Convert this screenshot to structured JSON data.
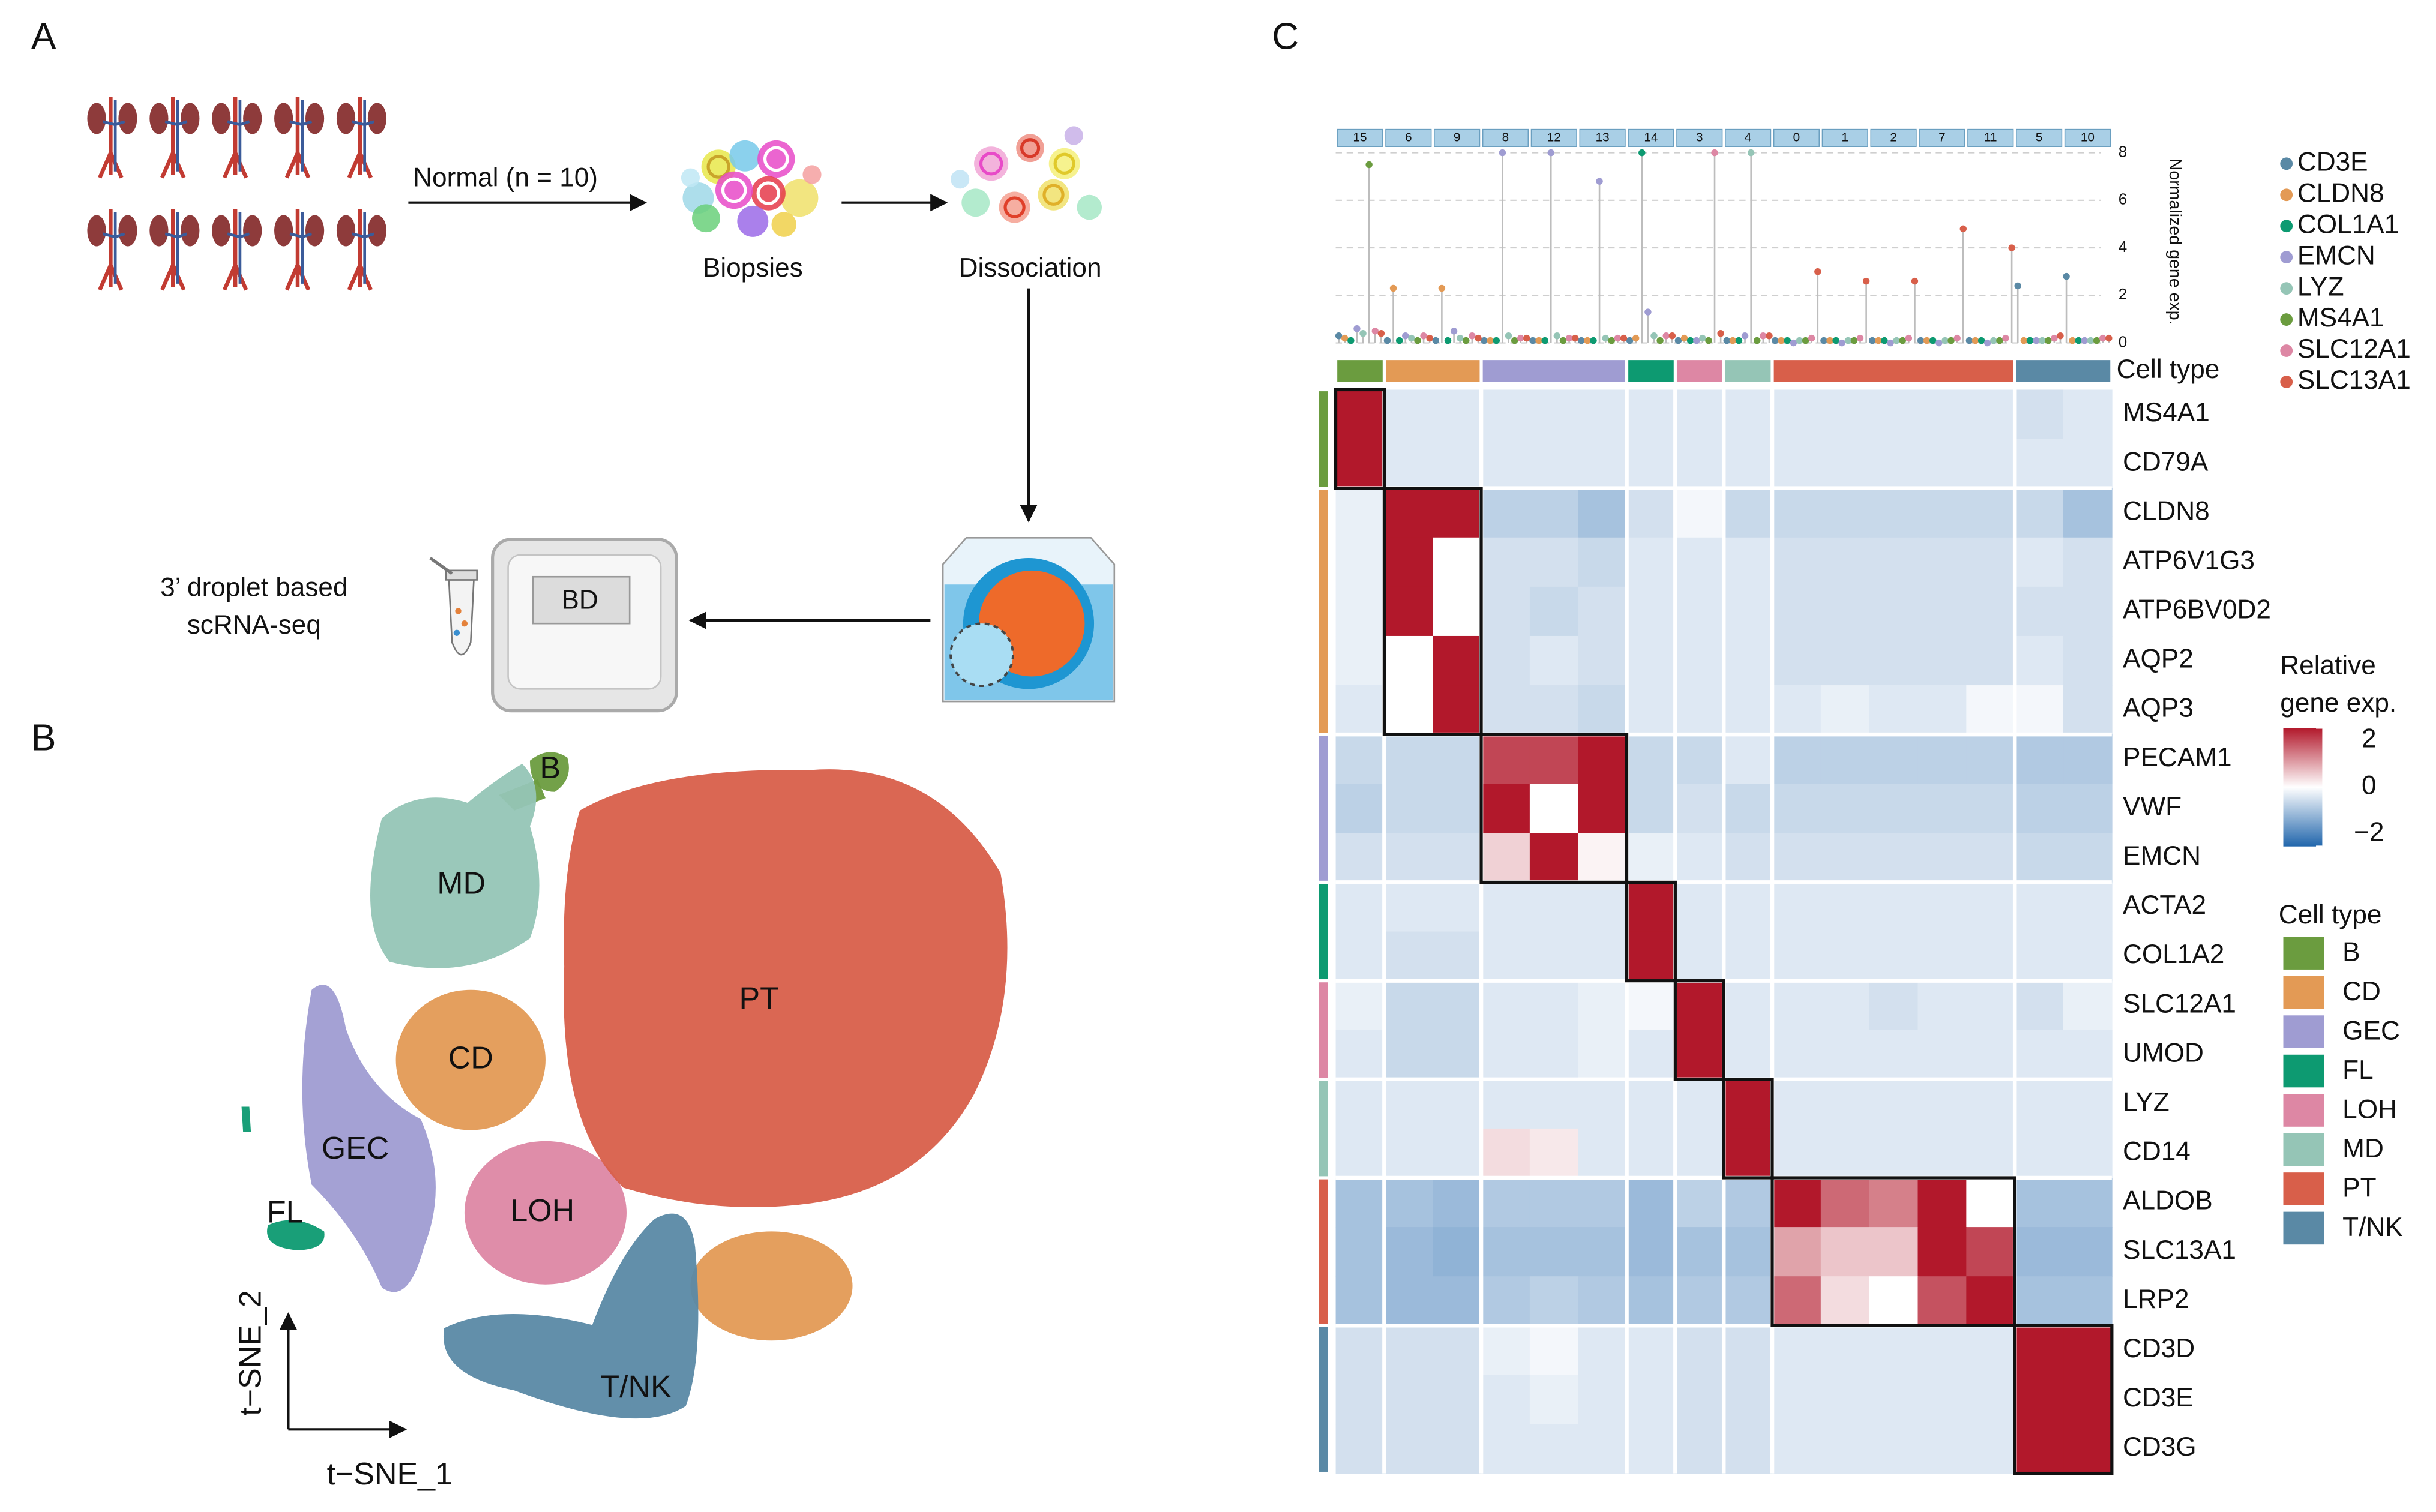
{
  "panel_a": {
    "label": "A",
    "condition": "Normal (n = 10)",
    "biopsies": "Biopsies",
    "dissociation": "Dissociation",
    "platform": "BD",
    "method": [
      "3’ droplet based",
      "scRNA-seq"
    ]
  },
  "panel_b": {
    "label": "B",
    "xlabel": "t−SNE_1",
    "ylabel": "t−SNE_2"
  },
  "panel_c": {
    "label": "C",
    "cell_type_label": "Cell type",
    "legend_title": "Cell type",
    "lollipop": {
      "type": "lollipop",
      "ylabel": "Normalized gene exp.",
      "ylim": [
        0,
        8
      ],
      "yticks": [
        0,
        2,
        4,
        6,
        8
      ],
      "grid": true,
      "series": [
        {
          "name": "CD3E",
          "color": "#5a89a5",
          "values": [
            0.3,
            0.1,
            0.1,
            0.1,
            0.1,
            0.1,
            0.1,
            0.1,
            0.1,
            0.1,
            0.1,
            0.1,
            0.1,
            0.1,
            2.4,
            2.8
          ]
        },
        {
          "name": "CLDN8",
          "color": "#e39a55",
          "values": [
            0.2,
            2.3,
            2.3,
            0.1,
            0.1,
            0.1,
            0.2,
            0.2,
            0.1,
            0.1,
            0.1,
            0.1,
            0.1,
            0.1,
            0.1,
            0.1
          ]
        },
        {
          "name": "COL1A1",
          "color": "#0d9a71",
          "values": [
            0.1,
            0.1,
            0.1,
            0.1,
            0.1,
            0.1,
            8,
            0.1,
            0.1,
            0.1,
            0.1,
            0.1,
            0.1,
            0.1,
            0.1,
            0.1
          ]
        },
        {
          "name": "EMCN",
          "color": "#9f9cd2",
          "values": [
            0.6,
            0.3,
            0.5,
            8,
            8,
            6.8,
            1.3,
            0.1,
            0.3,
            0,
            0,
            0,
            0,
            0,
            0.1,
            0.1
          ]
        },
        {
          "name": "LYZ",
          "color": "#95c5b6",
          "values": [
            0.4,
            0.2,
            0.2,
            0.3,
            0.3,
            0.2,
            0.3,
            0.2,
            8,
            0.1,
            0.1,
            0.1,
            0.1,
            0.1,
            0.1,
            0.1
          ]
        },
        {
          "name": "MS4A1",
          "color": "#6b9c3f",
          "values": [
            7.5,
            0.1,
            0.1,
            0.1,
            0.1,
            0.1,
            0.1,
            0.1,
            0.1,
            0.1,
            0.1,
            0.1,
            0.1,
            0.1,
            0.1,
            0.1
          ]
        },
        {
          "name": "SLC12A1",
          "color": "#dd87a4",
          "values": [
            0.5,
            0.3,
            0.3,
            0.2,
            0.2,
            0.2,
            0.3,
            8,
            0.3,
            0.2,
            0.2,
            0.2,
            0.2,
            0.2,
            0.2,
            0.2
          ]
        },
        {
          "name": "SLC13A1",
          "color": "#d85f4a",
          "values": [
            0.4,
            0.2,
            0.2,
            0.2,
            0.2,
            0.2,
            0.3,
            0.4,
            0.3,
            3,
            2.6,
            2.6,
            4.8,
            4,
            0.3,
            0.2
          ]
        }
      ]
    },
    "colorbar": {
      "title": [
        "Relative",
        "gene exp."
      ],
      "lim": [
        -2,
        2
      ],
      "colors": [
        "#2166ac",
        "#ffffff",
        "#b2182b"
      ],
      "ticks": [
        2,
        0,
        {
          "value": -2,
          "label": "−2"
        }
      ]
    }
  },
  "cell_types": [
    {
      "name": "B",
      "color": "#6b9c3f",
      "clusters": [
        "15"
      ],
      "genes": [
        {
          "name": "MS4A1",
          "values": [
            2,
            -0.3,
            -0.3,
            -0.3,
            -0.3,
            -0.3,
            -0.3,
            -0.3,
            -0.3,
            -0.3,
            -0.3,
            -0.3,
            -0.3,
            -0.3,
            -0.4,
            -0.3
          ]
        },
        {
          "name": "CD79A",
          "values": [
            2,
            -0.3,
            -0.3,
            -0.3,
            -0.3,
            -0.3,
            -0.3,
            -0.3,
            -0.3,
            -0.3,
            -0.3,
            -0.3,
            -0.3,
            -0.3,
            -0.3,
            -0.3
          ]
        }
      ]
    },
    {
      "name": "CD",
      "color": "#e39a55",
      "clusters": [
        "6",
        "9"
      ],
      "genes": [
        {
          "name": "CLDN8",
          "values": [
            -0.2,
            2,
            2,
            -0.6,
            -0.6,
            -0.8,
            -0.4,
            -0.1,
            -0.5,
            -0.5,
            -0.5,
            -0.5,
            -0.5,
            -0.5,
            -0.5,
            -0.8
          ]
        },
        {
          "name": "ATP6V1G3",
          "values": [
            -0.2,
            2,
            0,
            -0.4,
            -0.4,
            -0.5,
            -0.3,
            -0.3,
            -0.3,
            -0.4,
            -0.4,
            -0.4,
            -0.4,
            -0.4,
            -0.3,
            -0.4
          ]
        },
        {
          "name": "ATP6BV0D2",
          "values": [
            -0.2,
            2,
            0,
            -0.4,
            -0.5,
            -0.4,
            -0.3,
            -0.3,
            -0.3,
            -0.4,
            -0.4,
            -0.4,
            -0.4,
            -0.4,
            -0.4,
            -0.4
          ]
        },
        {
          "name": "AQP2",
          "values": [
            -0.2,
            0,
            2,
            -0.4,
            -0.3,
            -0.4,
            -0.3,
            -0.3,
            -0.3,
            -0.4,
            -0.4,
            -0.4,
            -0.4,
            -0.4,
            -0.3,
            -0.4
          ]
        },
        {
          "name": "AQP3",
          "values": [
            -0.3,
            0,
            2,
            -0.4,
            -0.4,
            -0.5,
            -0.3,
            -0.3,
            -0.3,
            -0.3,
            -0.2,
            -0.3,
            -0.3,
            -0.1,
            -0.1,
            -0.4
          ]
        }
      ]
    },
    {
      "name": "GEC",
      "color": "#9f9cd2",
      "clusters": [
        "8",
        "12",
        "13"
      ],
      "genes": [
        {
          "name": "PECAM1",
          "values": [
            -0.5,
            -0.5,
            -0.5,
            1.6,
            1.6,
            2,
            -0.5,
            -0.5,
            -0.3,
            -0.6,
            -0.6,
            -0.6,
            -0.6,
            -0.6,
            -0.7,
            -0.7
          ]
        },
        {
          "name": "VWF",
          "values": [
            -0.6,
            -0.5,
            -0.5,
            2,
            0,
            2,
            -0.5,
            -0.4,
            -0.5,
            -0.5,
            -0.5,
            -0.5,
            -0.5,
            -0.5,
            -0.6,
            -0.6
          ]
        },
        {
          "name": "EMCN",
          "values": [
            -0.4,
            -0.4,
            -0.4,
            0.4,
            2,
            0.1,
            -0.2,
            -0.3,
            -0.4,
            -0.4,
            -0.4,
            -0.4,
            -0.4,
            -0.4,
            -0.5,
            -0.5
          ]
        }
      ]
    },
    {
      "name": "FL",
      "color": "#0d9a71",
      "clusters": [
        "14"
      ],
      "genes": [
        {
          "name": "ACTA2",
          "values": [
            -0.3,
            -0.3,
            -0.3,
            -0.3,
            -0.3,
            -0.3,
            2,
            -0.3,
            -0.3,
            -0.3,
            -0.3,
            -0.3,
            -0.3,
            -0.3,
            -0.3,
            -0.3
          ]
        },
        {
          "name": "COL1A2",
          "values": [
            -0.3,
            -0.4,
            -0.4,
            -0.3,
            -0.3,
            -0.3,
            2,
            -0.3,
            -0.3,
            -0.3,
            -0.3,
            -0.3,
            -0.3,
            -0.3,
            -0.3,
            -0.3
          ]
        }
      ]
    },
    {
      "name": "LOH",
      "color": "#dd87a4",
      "clusters": [
        "3"
      ],
      "genes": [
        {
          "name": "SLC12A1",
          "values": [
            -0.2,
            -0.5,
            -0.5,
            -0.3,
            -0.3,
            -0.2,
            -0.1,
            2,
            -0.3,
            -0.3,
            -0.3,
            -0.4,
            -0.3,
            -0.3,
            -0.4,
            -0.2
          ]
        },
        {
          "name": "UMOD",
          "values": [
            -0.3,
            -0.5,
            -0.5,
            -0.3,
            -0.3,
            -0.2,
            -0.3,
            2,
            -0.3,
            -0.3,
            -0.3,
            -0.3,
            -0.3,
            -0.3,
            -0.3,
            -0.3
          ]
        }
      ]
    },
    {
      "name": "MD",
      "color": "#95c5b6",
      "clusters": [
        "4"
      ],
      "genes": [
        {
          "name": "LYZ",
          "values": [
            -0.3,
            -0.3,
            -0.3,
            -0.3,
            -0.3,
            -0.3,
            -0.3,
            -0.3,
            2,
            -0.3,
            -0.3,
            -0.3,
            -0.3,
            -0.3,
            -0.3,
            -0.3
          ]
        },
        {
          "name": "CD14",
          "values": [
            -0.3,
            -0.3,
            -0.3,
            0.3,
            0.2,
            -0.3,
            -0.3,
            -0.3,
            2,
            -0.3,
            -0.3,
            -0.3,
            -0.3,
            -0.3,
            -0.3,
            -0.3
          ]
        }
      ]
    },
    {
      "name": "PT",
      "color": "#d85f4a",
      "clusters": [
        "0",
        "1",
        "2",
        "7",
        "11"
      ],
      "genes": [
        {
          "name": "ALDOB",
          "values": [
            -0.8,
            -0.8,
            -0.9,
            -0.7,
            -0.7,
            -0.7,
            -0.9,
            -0.6,
            -0.7,
            2,
            1.3,
            1.1,
            2,
            0,
            -0.8,
            -0.8
          ]
        },
        {
          "name": "SLC13A1",
          "values": [
            -0.8,
            -0.9,
            -1,
            -0.8,
            -0.8,
            -0.8,
            -0.9,
            -0.8,
            -0.8,
            0.8,
            0.5,
            0.5,
            2,
            1.6,
            -0.9,
            -0.9
          ]
        },
        {
          "name": "LRP2",
          "values": [
            -0.8,
            -0.9,
            -0.9,
            -0.7,
            -0.6,
            -0.7,
            -0.8,
            -0.7,
            -0.7,
            1.3,
            0.3,
            0,
            1.5,
            2,
            -0.8,
            -0.8
          ]
        }
      ]
    },
    {
      "name": "T/NK",
      "color": "#5a89a5",
      "clusters": [
        "5",
        "10"
      ],
      "genes": [
        {
          "name": "CD3D",
          "values": [
            -0.4,
            -0.4,
            -0.4,
            -0.2,
            -0.1,
            -0.3,
            -0.3,
            -0.4,
            -0.4,
            -0.3,
            -0.3,
            -0.3,
            -0.3,
            -0.3,
            2,
            2
          ]
        },
        {
          "name": "CD3E",
          "values": [
            -0.4,
            -0.4,
            -0.4,
            -0.3,
            -0.2,
            -0.3,
            -0.3,
            -0.4,
            -0.4,
            -0.3,
            -0.3,
            -0.3,
            -0.3,
            -0.3,
            2,
            2
          ]
        },
        {
          "name": "CD3G",
          "values": [
            -0.4,
            -0.4,
            -0.4,
            -0.3,
            -0.3,
            -0.3,
            -0.3,
            -0.4,
            -0.4,
            -0.3,
            -0.3,
            -0.3,
            -0.3,
            -0.3,
            2,
            2
          ]
        }
      ]
    }
  ]
}
